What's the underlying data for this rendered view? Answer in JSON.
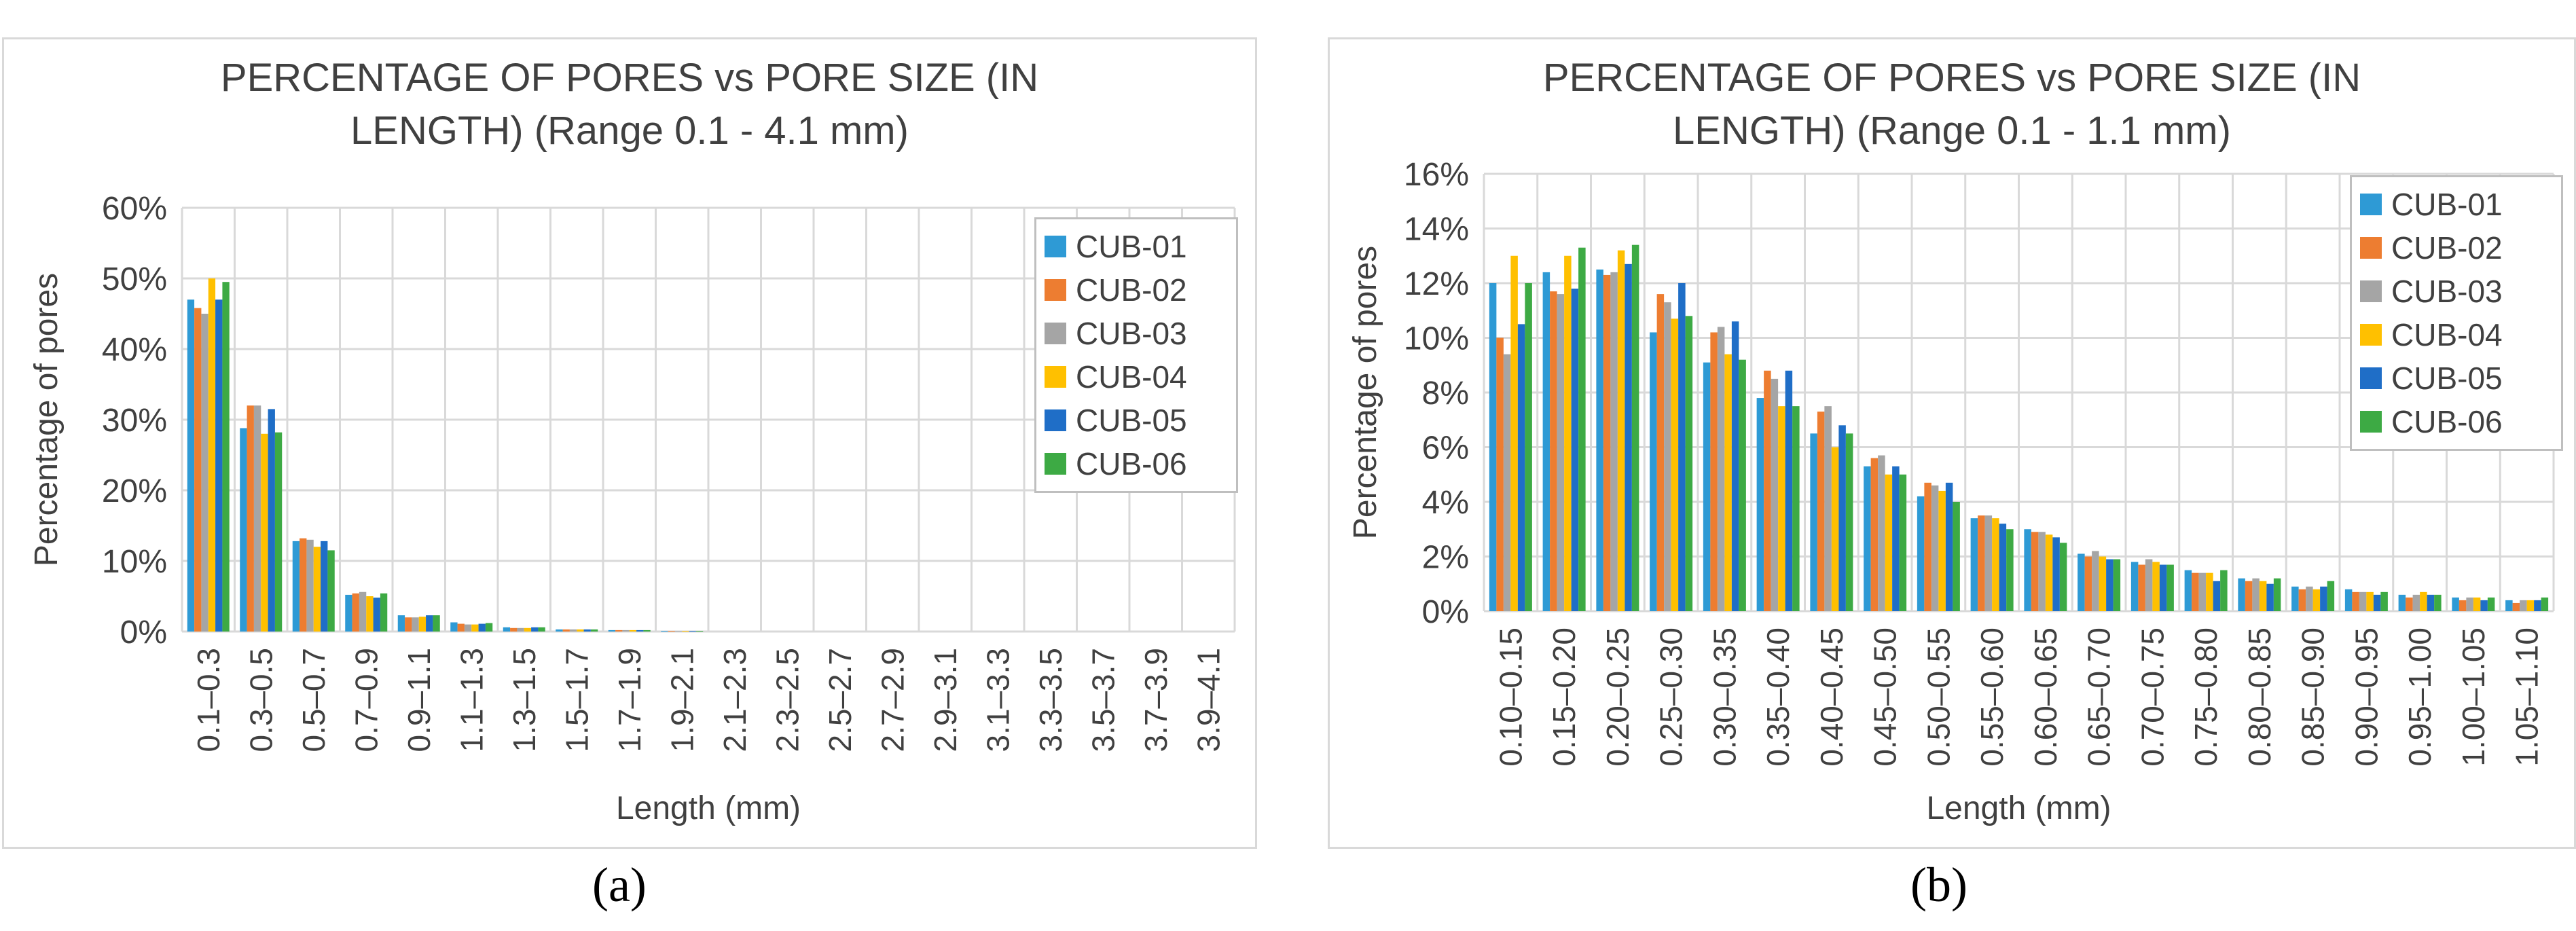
{
  "captions": {
    "a": "(a)",
    "b": "(b)"
  },
  "chart_data": [
    {
      "type": "bar",
      "title_lines": [
        "PERCENTAGE OF PORES vs PORE SIZE (IN",
        "LENGTH) (Range 0.1 - 4.1 mm)"
      ],
      "xlabel": "Length (mm)",
      "ylabel": "Percentage of pores",
      "ylim": [
        0,
        60
      ],
      "ytick_step": 10,
      "ytick_suffix": "%",
      "grid": true,
      "legend_position": "top-right",
      "categories": [
        "0.1–0.3",
        "0.3–0.5",
        "0.5–0.7",
        "0.7–0.9",
        "0.9–1.1",
        "1.1–1.3",
        "1.3–1.5",
        "1.5–1.7",
        "1.7–1.9",
        "1.9–2.1",
        "2.1–2.3",
        "2.3–2.5",
        "2.5–2.7",
        "2.7–2.9",
        "2.9–3.1",
        "3.1–3.3",
        "3.3–3.5",
        "3.5–3.7",
        "3.7–3.9",
        "3.9–4.1"
      ],
      "series": [
        {
          "name": "CUB-01",
          "color": "#2e9ad5",
          "values": [
            47.0,
            28.8,
            12.8,
            5.2,
            2.3,
            1.3,
            0.6,
            0.3,
            0.2,
            0.1,
            0,
            0,
            0,
            0,
            0,
            0,
            0,
            0,
            0,
            0
          ]
        },
        {
          "name": "CUB-02",
          "color": "#ed7d31",
          "values": [
            45.8,
            32.0,
            13.2,
            5.4,
            2.0,
            1.1,
            0.5,
            0.3,
            0.2,
            0.1,
            0,
            0,
            0,
            0,
            0,
            0,
            0,
            0,
            0,
            0
          ]
        },
        {
          "name": "CUB-03",
          "color": "#a5a5a5",
          "values": [
            45.0,
            32.0,
            13.0,
            5.6,
            2.0,
            1.0,
            0.5,
            0.3,
            0.2,
            0.1,
            0,
            0,
            0,
            0,
            0,
            0,
            0,
            0,
            0,
            0
          ]
        },
        {
          "name": "CUB-04",
          "color": "#ffc000",
          "values": [
            50.0,
            28.0,
            12.0,
            5.0,
            2.1,
            1.0,
            0.5,
            0.3,
            0.2,
            0.1,
            0,
            0,
            0,
            0,
            0,
            0,
            0,
            0,
            0,
            0
          ]
        },
        {
          "name": "CUB-05",
          "color": "#1f6ec7",
          "values": [
            47.0,
            31.5,
            12.8,
            4.8,
            2.3,
            1.1,
            0.6,
            0.3,
            0.2,
            0.1,
            0,
            0,
            0,
            0,
            0,
            0,
            0,
            0,
            0,
            0
          ]
        },
        {
          "name": "CUB-06",
          "color": "#3daa44",
          "values": [
            49.5,
            28.2,
            11.5,
            5.4,
            2.3,
            1.2,
            0.6,
            0.3,
            0.2,
            0.1,
            0,
            0,
            0,
            0,
            0,
            0,
            0,
            0,
            0,
            0
          ]
        }
      ]
    },
    {
      "type": "bar",
      "title_lines": [
        "PERCENTAGE OF PORES vs PORE SIZE (IN",
        "LENGTH) (Range 0.1 - 1.1 mm)"
      ],
      "xlabel": "Length (mm)",
      "ylabel": "Percentage of pores",
      "ylim": [
        0,
        16
      ],
      "ytick_step": 2,
      "ytick_suffix": "%",
      "grid": true,
      "legend_position": "top-right",
      "categories": [
        "0.10–0.15",
        "0.15–0.20",
        "0.20–0.25",
        "0.25–0.30",
        "0.30–0.35",
        "0.35–0.40",
        "0.40–0.45",
        "0.45–0.50",
        "0.50–0.55",
        "0.55–0.60",
        "0.60–0.65",
        "0.65–0.70",
        "0.70–0.75",
        "0.75–0.80",
        "0.80–0.85",
        "0.85–0.90",
        "0.90–0.95",
        "0.95–1.00",
        "1.00–1.05",
        "1.05–1.10"
      ],
      "series": [
        {
          "name": "CUB-01",
          "color": "#2e9ad5",
          "values": [
            12.0,
            12.4,
            12.5,
            10.2,
            9.1,
            7.8,
            6.5,
            5.3,
            4.2,
            3.4,
            3.0,
            2.1,
            1.8,
            1.5,
            1.2,
            0.9,
            0.8,
            0.6,
            0.5,
            0.4
          ]
        },
        {
          "name": "CUB-02",
          "color": "#ed7d31",
          "values": [
            10.0,
            11.7,
            12.3,
            11.6,
            10.2,
            8.8,
            7.3,
            5.6,
            4.7,
            3.5,
            2.9,
            2.0,
            1.7,
            1.4,
            1.1,
            0.8,
            0.7,
            0.5,
            0.4,
            0.3
          ]
        },
        {
          "name": "CUB-03",
          "color": "#a5a5a5",
          "values": [
            9.4,
            11.6,
            12.4,
            11.3,
            10.4,
            8.5,
            7.5,
            5.7,
            4.6,
            3.5,
            2.9,
            2.2,
            1.9,
            1.4,
            1.2,
            0.9,
            0.7,
            0.6,
            0.5,
            0.4
          ]
        },
        {
          "name": "CUB-04",
          "color": "#ffc000",
          "values": [
            13.0,
            13.0,
            13.2,
            10.7,
            9.4,
            7.5,
            6.0,
            5.0,
            4.4,
            3.4,
            2.8,
            2.0,
            1.8,
            1.4,
            1.1,
            0.8,
            0.7,
            0.7,
            0.5,
            0.4
          ]
        },
        {
          "name": "CUB-05",
          "color": "#1f6ec7",
          "values": [
            10.5,
            11.8,
            12.7,
            12.0,
            10.6,
            8.8,
            6.8,
            5.3,
            4.7,
            3.2,
            2.7,
            1.9,
            1.7,
            1.1,
            1.0,
            0.9,
            0.6,
            0.6,
            0.4,
            0.4
          ]
        },
        {
          "name": "CUB-06",
          "color": "#3daa44",
          "values": [
            12.0,
            13.3,
            13.4,
            10.8,
            9.2,
            7.5,
            6.5,
            5.0,
            4.0,
            3.0,
            2.5,
            1.9,
            1.7,
            1.5,
            1.2,
            1.1,
            0.7,
            0.6,
            0.5,
            0.5
          ]
        }
      ]
    }
  ]
}
